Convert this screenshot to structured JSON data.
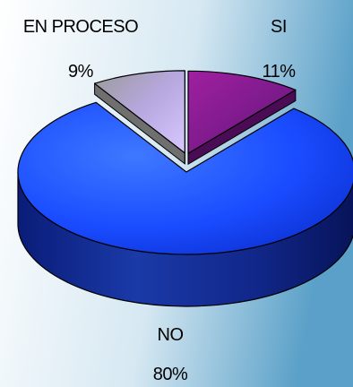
{
  "chart_data": {
    "type": "pie",
    "title": "",
    "categories": [
      "SI",
      "NO",
      "EN PROCESO"
    ],
    "values": [
      11,
      80,
      9
    ],
    "value_labels": [
      "11%",
      "80%",
      "9%"
    ],
    "three_d": true,
    "legend": "none",
    "exploded_slices": [
      "SI",
      "EN PROCESO"
    ],
    "colors": {
      "SI": "#8a1a8e",
      "NO": "#1a4cff",
      "EN PROCESO": "#b7a5e4",
      "background_left": "#ffffff",
      "background_right": "#5aa0c8"
    }
  }
}
